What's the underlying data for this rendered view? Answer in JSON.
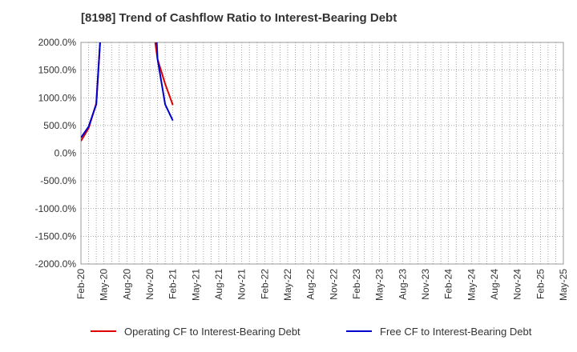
{
  "chart_data": {
    "type": "line",
    "title": "[8198]  Trend of Cashflow Ratio to Interest-Bearing Debt",
    "xlabel": "",
    "ylabel": "",
    "ylim": [
      -2000,
      2000
    ],
    "y_ticks": [
      2000,
      1500,
      1000,
      500,
      0,
      -500,
      -1000,
      -1500,
      -2000
    ],
    "y_tick_labels": [
      "2000.0%",
      "1500.0%",
      "1000.0%",
      "500.0%",
      "0.0%",
      "-500.0%",
      "-1000.0%",
      "-1500.0%",
      "-2000.0%"
    ],
    "x_tick_labels": [
      "Feb-20",
      "May-20",
      "Aug-20",
      "Nov-20",
      "Feb-21",
      "May-21",
      "Aug-21",
      "Nov-21",
      "Feb-22",
      "May-22",
      "Aug-22",
      "Nov-22",
      "Feb-23",
      "May-23",
      "Aug-23",
      "Nov-23",
      "Feb-24",
      "May-24",
      "Aug-24",
      "Nov-24",
      "Feb-25",
      "May-25"
    ],
    "grid": true,
    "legend_position": "bottom",
    "series": [
      {
        "name": "Operating CF to Interest-Bearing Debt",
        "color": "#e00000",
        "points": [
          {
            "month": 0,
            "value": 220
          },
          {
            "month": 1,
            "value": 450
          },
          {
            "month": 2,
            "value": 900
          },
          {
            "month": 2.5,
            "value": 2000
          },
          {
            "month": 9.7,
            "value": 2000
          },
          {
            "month": 10,
            "value": 1700
          },
          {
            "month": 11,
            "value": 1250
          },
          {
            "month": 12,
            "value": 870
          }
        ]
      },
      {
        "name": "Free CF to Interest-Bearing Debt",
        "color": "#0000cc",
        "points": [
          {
            "month": 0,
            "value": 280
          },
          {
            "month": 1,
            "value": 480
          },
          {
            "month": 2,
            "value": 880
          },
          {
            "month": 2.5,
            "value": 2000
          },
          {
            "month": 9.9,
            "value": 2000
          },
          {
            "month": 10,
            "value": 1700
          },
          {
            "month": 11,
            "value": 880
          },
          {
            "month": 12,
            "value": 590
          }
        ]
      }
    ]
  }
}
